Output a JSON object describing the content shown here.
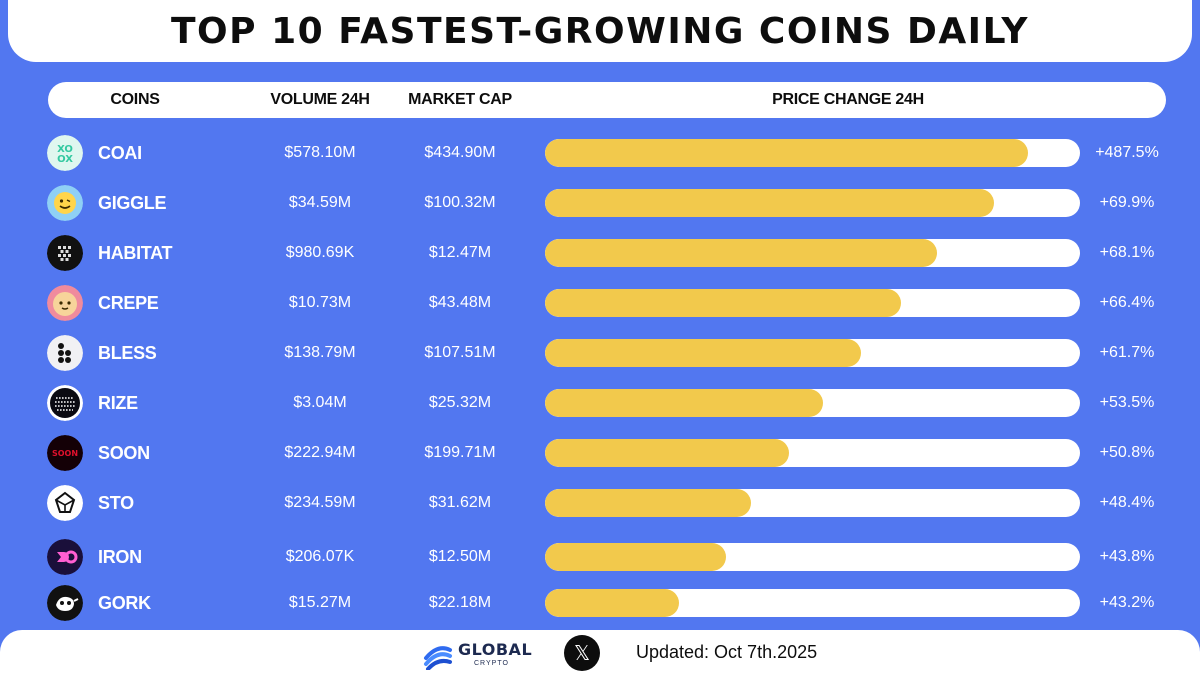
{
  "title": "TOP 10 FASTEST-GROWING COINS DAILY",
  "headers": {
    "coins": "COINS",
    "volume": "VOLUME 24H",
    "market_cap": "MARKET CAP",
    "price_change": "PRICE CHANGE 24H"
  },
  "chart_data": {
    "type": "bar",
    "orientation": "horizontal",
    "title": "TOP 10 FASTEST-GROWING COINS DAILY",
    "columns": [
      "COINS",
      "VOLUME 24H",
      "MARKET CAP",
      "PRICE CHANGE 24H"
    ],
    "rows": [
      {
        "coin": "COAI",
        "icon": "coai-coin-icon",
        "volume": "$578.10M",
        "market_cap": "$434.90M",
        "change_label": "+487.5%",
        "change": 487.5,
        "bar_fill": 0.903
      },
      {
        "coin": "GIGGLE",
        "icon": "giggle-coin-icon",
        "volume": "$34.59M",
        "market_cap": "$100.32M",
        "change_label": "+69.9%",
        "change": 69.9,
        "bar_fill": 0.84
      },
      {
        "coin": "HABITAT",
        "icon": "habitat-coin-icon",
        "volume": "$980.69K",
        "market_cap": "$12.47M",
        "change_label": "+68.1%",
        "change": 68.1,
        "bar_fill": 0.733
      },
      {
        "coin": "CREPE",
        "icon": "crepe-coin-icon",
        "volume": "$10.73M",
        "market_cap": "$43.48M",
        "change_label": "+66.4%",
        "change": 66.4,
        "bar_fill": 0.665
      },
      {
        "coin": "BLESS",
        "icon": "bless-coin-icon",
        "volume": "$138.79M",
        "market_cap": "$107.51M",
        "change_label": "+61.7%",
        "change": 61.7,
        "bar_fill": 0.59
      },
      {
        "coin": "RIZE",
        "icon": "rize-coin-icon",
        "volume": "$3.04M",
        "market_cap": "$25.32M",
        "change_label": "+53.5%",
        "change": 53.5,
        "bar_fill": 0.52
      },
      {
        "coin": "SOON",
        "icon": "soon-coin-icon",
        "volume": "$222.94M",
        "market_cap": "$199.71M",
        "change_label": "+50.8%",
        "change": 50.8,
        "bar_fill": 0.457
      },
      {
        "coin": "STO",
        "icon": "sto-coin-icon",
        "volume": "$234.59M",
        "market_cap": "$31.62M",
        "change_label": "+48.4%",
        "change": 48.4,
        "bar_fill": 0.385
      },
      {
        "coin": "IRON",
        "icon": "iron-coin-icon",
        "volume": "$206.07K",
        "market_cap": "$12.50M",
        "change_label": "+43.8%",
        "change": 43.8,
        "bar_fill": 0.338
      },
      {
        "coin": "GORK",
        "icon": "gork-coin-icon",
        "volume": "$15.27M",
        "market_cap": "$22.18M",
        "change_label": "+43.2%",
        "change": 43.2,
        "bar_fill": 0.25
      }
    ],
    "colors": {
      "bar": "#f2c94c",
      "track": "#ffffff",
      "background": "#5277f0"
    }
  },
  "footer": {
    "brand": "GLOBAL",
    "brand_sub": "CRYPTO",
    "x_label": "𝕏",
    "updated": "Updated: Oct 7th.2025"
  }
}
